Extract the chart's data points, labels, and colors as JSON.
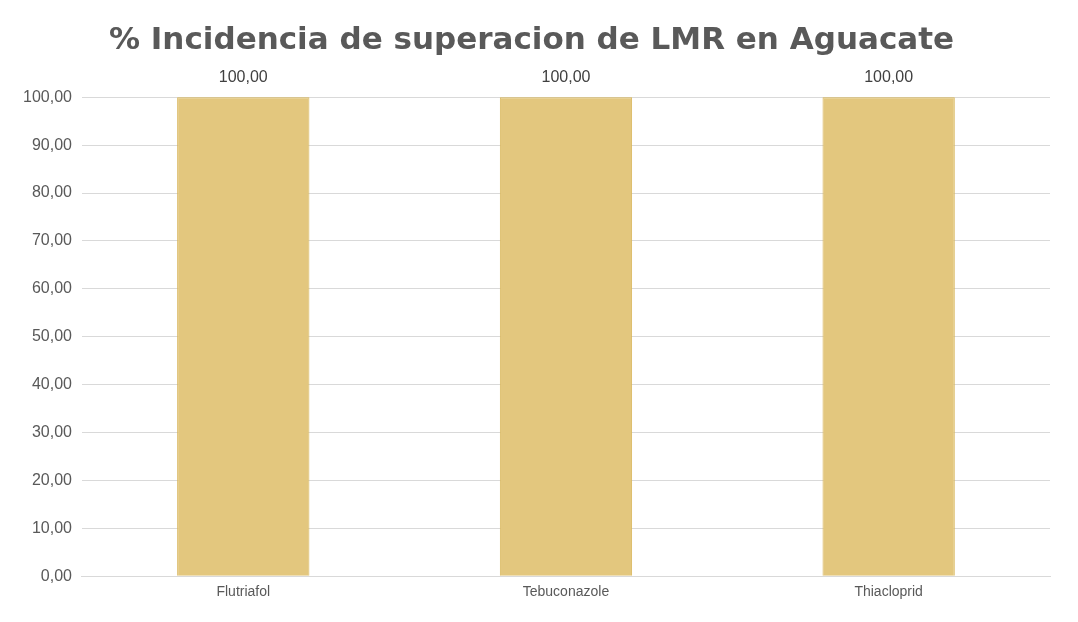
{
  "chart_data": {
    "type": "bar",
    "title": "% Incidencia de superacion de LMR en Aguacate",
    "categories": [
      "Flutriafol",
      "Tebuconazole",
      "Thiacloprid"
    ],
    "values": [
      100,
      100,
      100
    ],
    "value_labels": [
      "100,00",
      "100,00",
      "100,00"
    ],
    "color": "#e3c77e",
    "ylim": [
      0,
      100
    ],
    "yticks": [
      {
        "value": 0,
        "label": "0,00"
      },
      {
        "value": 10,
        "label": "10,00"
      },
      {
        "value": 20,
        "label": "20,00"
      },
      {
        "value": 30,
        "label": "30,00"
      },
      {
        "value": 40,
        "label": "40,00"
      },
      {
        "value": 50,
        "label": "50,00"
      },
      {
        "value": 60,
        "label": "60,00"
      },
      {
        "value": 70,
        "label": "70,00"
      },
      {
        "value": 80,
        "label": "80,00"
      },
      {
        "value": 90,
        "label": "90,00"
      },
      {
        "value": 100,
        "label": "100,00"
      }
    ],
    "grid": "y",
    "legend": false
  }
}
